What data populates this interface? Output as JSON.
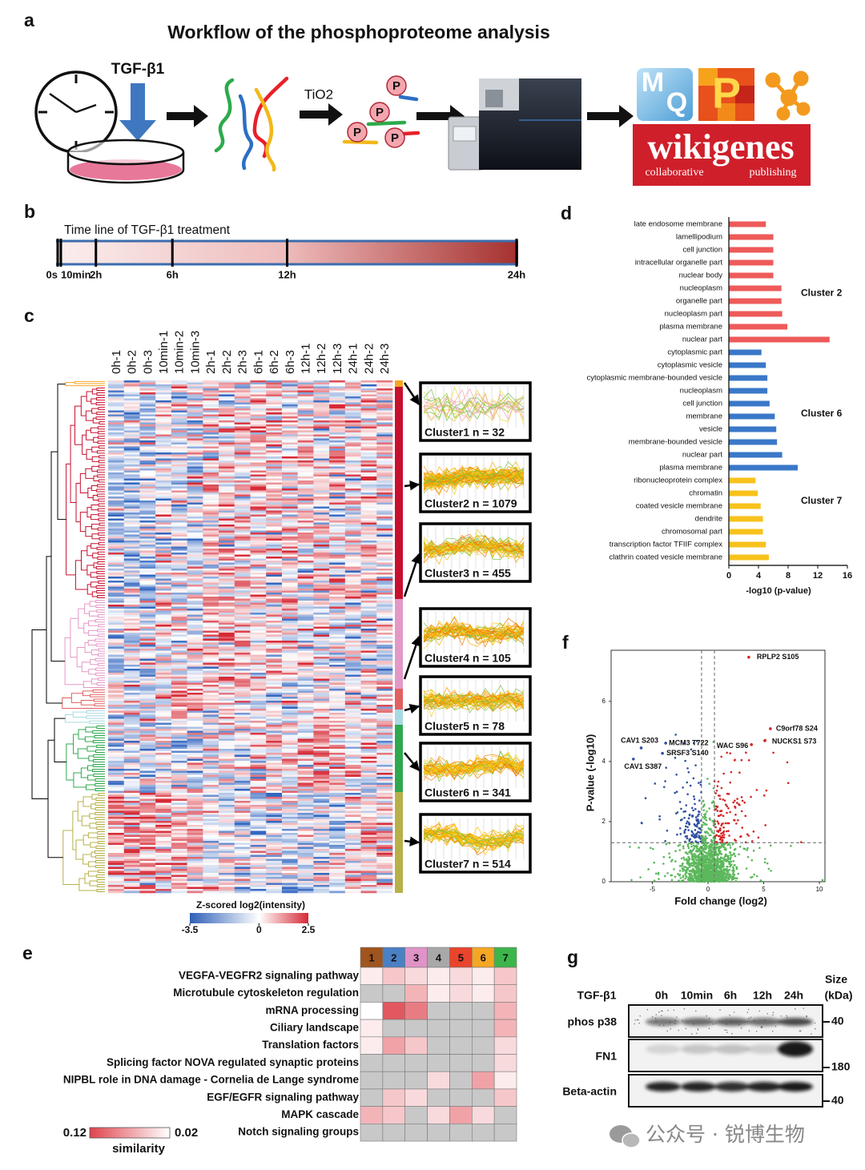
{
  "panel_a": {
    "label": "a",
    "title": "Workflow of the phosphoproteome analysis",
    "treatment": "TGF-β1",
    "enrichment": "TiO2",
    "phospho_tags": [
      "P",
      "P",
      "P",
      "P"
    ],
    "software_letters": [
      "M",
      "Q",
      "P"
    ],
    "logo": {
      "name": "wikigenes",
      "left": "collaborative",
      "right": "publishing"
    }
  },
  "panel_b": {
    "label": "b",
    "title": "Time line of TGF-β1 treatment",
    "xlim": [
      0,
      24
    ],
    "xticks": [
      {
        "value": 0,
        "label": "0s"
      },
      {
        "value": 0.1667,
        "label": "10min"
      },
      {
        "value": 2,
        "label": "2h"
      },
      {
        "value": 6,
        "label": "6h"
      },
      {
        "value": 12,
        "label": "12h"
      },
      {
        "value": 24,
        "label": "24h"
      }
    ]
  },
  "panel_c": {
    "label": "c",
    "columns": [
      "0h-1",
      "0h-2",
      "0h-3",
      "10min-1",
      "10min-2",
      "10min-3",
      "2h-1",
      "2h-2",
      "2h-3",
      "6h-1",
      "6h-2",
      "6h-3",
      "12h-1",
      "12h-2",
      "12h-3",
      "24h-1",
      "24h-2",
      "24h-3"
    ],
    "clusters": [
      {
        "label": "Cluster1 n = 32",
        "color": "#f5a623"
      },
      {
        "label": "Cluster2 n = 1079",
        "color": "#c8102e"
      },
      {
        "label": "Cluster3 n = 455",
        "color": "#e498c6"
      },
      {
        "label": "Cluster4 n = 105",
        "color": "#e26060"
      },
      {
        "label": "Cluster5 n = 78",
        "color": "#a9d9e2"
      },
      {
        "label": "Cluster6 n = 341",
        "color": "#2fa84f"
      },
      {
        "label": "Cluster7 n = 514",
        "color": "#b7b04a"
      }
    ],
    "colorbar": {
      "title": "Z-scored log2(intensity)",
      "lim": [
        -3.5,
        2.5
      ],
      "ticks": [
        -3.5,
        0,
        2.5
      ]
    }
  },
  "panel_d": {
    "label": "d",
    "type": "bar",
    "orientation": "horizontal",
    "xlabel": "-log10 (p-value)",
    "xlim": [
      0,
      16
    ],
    "xticks": [
      0,
      4,
      8,
      12,
      16
    ],
    "groups": [
      {
        "name": "Cluster 2",
        "color": "#ee5a5a",
        "categories": [
          "late endosome membrane",
          "lamellipodium",
          "cell junction",
          "intracellular organelle part",
          "nuclear body",
          "nucleoplasm",
          "organelle part",
          "nucleoplasm part",
          "plasma membrane",
          "nuclear part"
        ],
        "values": [
          5.0,
          6.0,
          6.0,
          6.0,
          6.0,
          7.1,
          7.1,
          7.2,
          7.9,
          13.6
        ]
      },
      {
        "name": "Cluster 6",
        "color": "#3a78c8",
        "categories": [
          "cytoplasmic part",
          "cytoplasmic vesicle",
          "cytoplasmic membrane-bounded vesicle",
          "nucleoplasm",
          "cell junction",
          "membrane",
          "vesicle",
          "membrane-bounded vesicle",
          "nuclear part",
          "plasma membrane"
        ],
        "values": [
          4.4,
          5.0,
          5.2,
          5.2,
          5.5,
          6.2,
          6.4,
          6.5,
          7.2,
          9.3
        ]
      },
      {
        "name": "Cluster 7",
        "color": "#f8c21c",
        "categories": [
          "ribonucleoprotein complex",
          "chromatin",
          "coated vesicle membrane",
          "dendrite",
          "chromosomal part",
          "transcription factor TFIIF complex",
          "clathrin coated vesicle membrane"
        ],
        "values": [
          3.6,
          3.9,
          4.3,
          4.6,
          4.6,
          5.0,
          5.4
        ]
      }
    ]
  },
  "panel_e": {
    "label": "e",
    "columns": [
      "1",
      "2",
      "3",
      "4",
      "5",
      "6",
      "7"
    ],
    "column_colors": [
      "#a0541e",
      "#4a80c4",
      "#e093c6",
      "#a8a8a8",
      "#e8452c",
      "#f5a623",
      "#3cb54a"
    ],
    "rows": [
      "VEGFA-VEGFR2 signaling pathway",
      "Microtubule cytoskeleton regulation",
      "mRNA processing",
      "Ciliary landscape",
      "Translation factors",
      "Splicing factor NOVA regulated synaptic proteins",
      "NIPBL role in DNA damage - Cornelia de Lange syndrome",
      "EGF/EGFR signaling pathway",
      "MAPK cascade",
      "Notch signaling groups"
    ],
    "values": [
      [
        0.03,
        0.05,
        0.04,
        0.03,
        0.04,
        0.03,
        0.05
      ],
      [
        null,
        null,
        0.06,
        0.03,
        0.04,
        0.03,
        0.05
      ],
      [
        0.02,
        0.11,
        0.09,
        null,
        null,
        null,
        0.06
      ],
      [
        0.03,
        null,
        null,
        null,
        null,
        null,
        0.06
      ],
      [
        0.03,
        0.07,
        0.05,
        null,
        null,
        null,
        0.04
      ],
      [
        null,
        null,
        null,
        null,
        null,
        null,
        0.04
      ],
      [
        null,
        null,
        null,
        0.04,
        null,
        0.07,
        0.03
      ],
      [
        null,
        0.05,
        0.04,
        null,
        null,
        null,
        0.05
      ],
      [
        0.06,
        0.05,
        null,
        0.04,
        0.07,
        0.04,
        null
      ],
      [
        null,
        null,
        null,
        null,
        null,
        null,
        null
      ]
    ],
    "colorbar": {
      "title": "similarity",
      "lim": [
        0.12,
        0.02
      ]
    }
  },
  "panel_f": {
    "label": "f",
    "type": "scatter",
    "xlabel": "Fold change (log2)",
    "ylabel": "P-value (-log10)",
    "xlim": [
      -8.7,
      10.5
    ],
    "ylim": [
      0,
      7.7
    ],
    "xticks": [
      -5,
      0,
      5,
      10
    ],
    "yticks": [
      0,
      2,
      4,
      6
    ],
    "fc_threshold": [
      -0.58,
      0.58
    ],
    "p_threshold": 1.3,
    "points": [
      {
        "label": "RPLP2 S105",
        "x": 3.66,
        "y": 7.47
      },
      {
        "label": "C9orf78 S24",
        "x": 5.6,
        "y": 5.09
      },
      {
        "label": "NUCKS1 S73",
        "x": 5.1,
        "y": 4.69
      },
      {
        "label": "WAC S96",
        "x": 3.9,
        "y": 4.56
      },
      {
        "label": "CAV1 S203",
        "x": -6.0,
        "y": 4.45
      },
      {
        "label": "MCM3 T722",
        "x": -3.8,
        "y": 4.61
      },
      {
        "label": "SRSF3 S140",
        "x": -4.09,
        "y": 4.27
      },
      {
        "label": "CAV1 S387",
        "x": -6.7,
        "y": 4.08
      }
    ]
  },
  "panel_g": {
    "label": "g",
    "treatment": "TGF-β1",
    "lanes": [
      "0h",
      "10min",
      "6h",
      "12h",
      "24h"
    ],
    "size_header": [
      "Size",
      "(kDa)"
    ],
    "blots": [
      {
        "name": "phos p38",
        "size": "40"
      },
      {
        "name": "FN1",
        "size": "180"
      },
      {
        "name": "Beta-actin",
        "size": "40"
      }
    ]
  },
  "watermark": "公众号 · 锐博生物"
}
